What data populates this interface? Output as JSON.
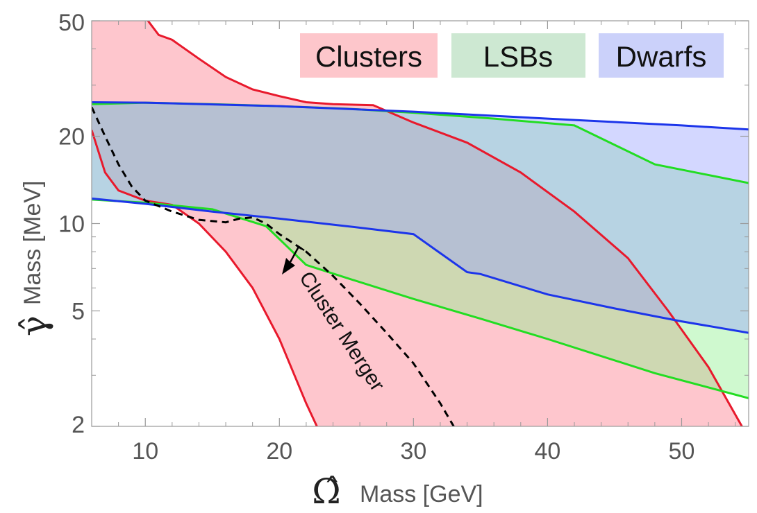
{
  "chart_data": {
    "type": "area",
    "x_scale": "linear",
    "y_scale": "log",
    "xlim": [
      6,
      55
    ],
    "ylim": [
      2,
      50
    ],
    "x_ticks_major": [
      10,
      20,
      30,
      40,
      50
    ],
    "x_ticks_minor": [
      8,
      12,
      14,
      16,
      18,
      22,
      24,
      26,
      28,
      32,
      34,
      36,
      38,
      42,
      44,
      46,
      48,
      52,
      54
    ],
    "y_ticks_major": [
      2,
      5,
      10,
      20,
      50
    ],
    "y_ticks_minor": [
      3,
      4,
      6,
      7,
      8,
      9,
      30,
      40
    ],
    "x_tick_labels": [
      "10",
      "20",
      "30",
      "40",
      "50"
    ],
    "y_tick_labels": [
      "2",
      "5",
      "10",
      "20",
      "50"
    ],
    "xlabel": {
      "symbol": "Ω̂",
      "text": "Mass [GeV]"
    },
    "ylabel": {
      "symbol": "γ̂",
      "text": "Mass [MeV]"
    },
    "grid": false,
    "legend_position": "top-right",
    "legend": [
      {
        "label": "Clusters",
        "color": "#fdc6cb"
      },
      {
        "label": "LSBs",
        "color": "#cde8d2"
      },
      {
        "label": "Dwarfs",
        "color": "#cbd1fa"
      }
    ],
    "series": [
      {
        "name": "Clusters",
        "fill": "rgba(253,120,135,0.42)",
        "stroke": "#e8192c",
        "upper": [
          [
            10.2,
            50
          ],
          [
            11,
            44.7
          ],
          [
            12,
            43
          ],
          [
            14,
            37
          ],
          [
            16,
            32
          ],
          [
            18,
            29
          ],
          [
            20,
            27.5
          ],
          [
            22,
            26.2
          ],
          [
            24,
            25.8
          ],
          [
            27,
            25.6
          ],
          [
            30,
            22.3
          ],
          [
            34,
            19
          ],
          [
            38,
            15
          ],
          [
            42,
            11
          ],
          [
            46,
            7.6
          ],
          [
            49,
            5
          ],
          [
            52,
            3.2
          ],
          [
            54.5,
            2
          ]
        ],
        "lower": [
          [
            6,
            21
          ],
          [
            7,
            15
          ],
          [
            8,
            13
          ],
          [
            10,
            12
          ],
          [
            12,
            11.6
          ],
          [
            14,
            10
          ],
          [
            16,
            8
          ],
          [
            18,
            6
          ],
          [
            20,
            4
          ],
          [
            22,
            2.4
          ],
          [
            22.8,
            2
          ]
        ]
      },
      {
        "name": "LSBs",
        "fill": "rgba(140,240,140,0.42)",
        "stroke": "#22dd22",
        "upper": [
          [
            6,
            25.8
          ],
          [
            10,
            26.1
          ],
          [
            15,
            25.8
          ],
          [
            20,
            25.4
          ],
          [
            25,
            24.9
          ],
          [
            30,
            24.1
          ],
          [
            36,
            23
          ],
          [
            42,
            21.8
          ],
          [
            48,
            16
          ],
          [
            55,
            13.8
          ]
        ],
        "lower": [
          [
            6,
            12.1
          ],
          [
            10,
            11.8
          ],
          [
            15,
            11.2
          ],
          [
            19,
            9.8
          ],
          [
            22,
            7.2
          ],
          [
            25,
            6.5
          ],
          [
            30,
            5.5
          ],
          [
            35,
            4.7
          ],
          [
            40,
            4
          ],
          [
            48,
            3.05
          ],
          [
            55,
            2.5
          ]
        ]
      },
      {
        "name": "Dwarfs",
        "fill": "rgba(150,160,255,0.42)",
        "stroke": "#1c35ea",
        "upper": [
          [
            6,
            26.2
          ],
          [
            10,
            26.1
          ],
          [
            20,
            25.4
          ],
          [
            30,
            24.3
          ],
          [
            40,
            23
          ],
          [
            50,
            21.8
          ],
          [
            55,
            21.1
          ]
        ],
        "lower": [
          [
            6,
            12.2
          ],
          [
            10,
            11.7
          ],
          [
            15,
            11
          ],
          [
            20,
            10.4
          ],
          [
            25,
            9.8
          ],
          [
            30,
            9.2
          ],
          [
            34,
            6.8
          ],
          [
            35,
            6.7
          ],
          [
            40,
            5.7
          ],
          [
            45,
            5.1
          ],
          [
            50,
            4.6
          ],
          [
            55,
            4.2
          ]
        ]
      }
    ],
    "dashed_curve": {
      "name": "Cluster Merger",
      "color": "#000000",
      "points": [
        [
          6,
          25.2
        ],
        [
          7,
          20
        ],
        [
          8,
          16
        ],
        [
          9,
          13.4
        ],
        [
          10,
          12
        ],
        [
          12,
          11
        ],
        [
          14,
          10.3
        ],
        [
          16,
          10.1
        ],
        [
          17,
          10.4
        ],
        [
          18,
          10.5
        ],
        [
          19,
          10
        ],
        [
          20,
          9.2
        ],
        [
          22,
          8
        ],
        [
          24,
          6.6
        ],
        [
          26,
          5.3
        ],
        [
          28,
          4.2
        ],
        [
          30,
          3.3
        ],
        [
          32,
          2.4
        ],
        [
          33,
          2
        ]
      ]
    },
    "annotations": [
      {
        "text": "Cluster Merger",
        "color": "#000000"
      }
    ]
  }
}
